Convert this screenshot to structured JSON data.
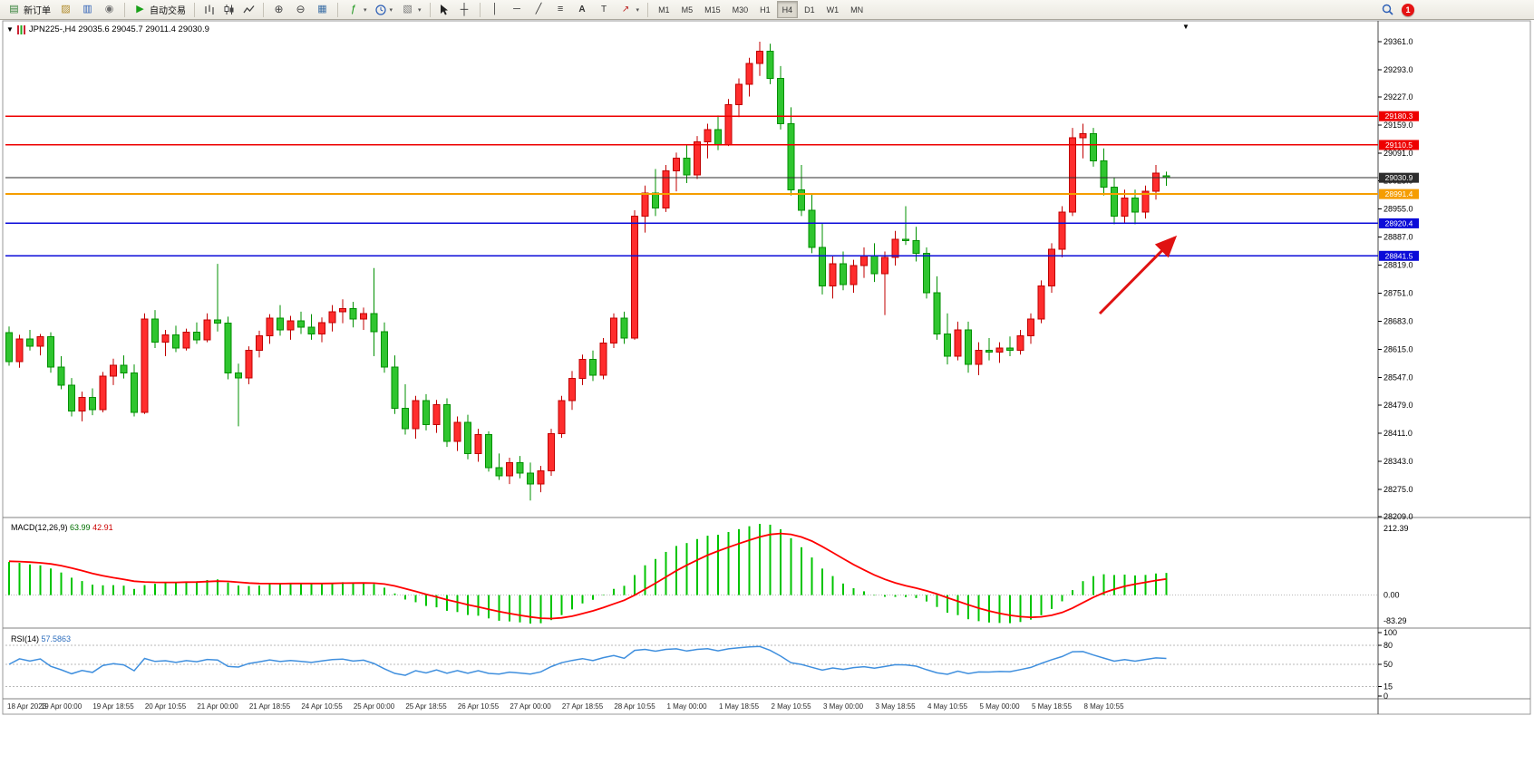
{
  "toolbar": {
    "new_order_label": "新订单",
    "auto_trading_label": "自动交易",
    "timeframes": [
      "M1",
      "M5",
      "M15",
      "M30",
      "H1",
      "H4",
      "D1",
      "W1",
      "MN"
    ],
    "active_timeframe": "H4",
    "notification_count": "1"
  },
  "chart": {
    "title": "JPN225-,H4 29035.6 29045.7 29011.4 29030.9"
  },
  "chart_data": {
    "type": "candlestick",
    "symbol": "JPN225-",
    "timeframe": "H4",
    "current_ohlc": {
      "open": 29035.6,
      "high": 29045.7,
      "low": 29011.4,
      "close": 29030.9
    },
    "price_axis_ticks": [
      29361.0,
      29293.0,
      29227.0,
      29159.0,
      29091.0,
      29023.0,
      28955.0,
      28887.0,
      28819.0,
      28751.0,
      28683.0,
      28615.0,
      28547.0,
      28479.0,
      28411.0,
      28343.0,
      28275.0,
      28209.0
    ],
    "price_range": {
      "top": 29361.0,
      "bottom": 28209.0
    },
    "horizontal_lines": [
      {
        "price": 29180.3,
        "label": "29180.3",
        "color": "#ee0000",
        "type": "resistance"
      },
      {
        "price": 29110.5,
        "label": "29110.5",
        "color": "#ee0000",
        "type": "resistance"
      },
      {
        "price": 29030.9,
        "label": "29030.9",
        "color": "#2d2d2d",
        "type": "current-price"
      },
      {
        "price": 28991.4,
        "label": "28991.4",
        "color": "#f59d00",
        "type": "level"
      },
      {
        "price": 28920.4,
        "label": "28920.4",
        "color": "#0b0bd8",
        "type": "support"
      },
      {
        "price": 28841.5,
        "label": "28841.5",
        "color": "#0b0bd8",
        "type": "support"
      }
    ],
    "candles_ohlc": [
      [
        28655,
        28670,
        28575,
        28585
      ],
      [
        28585,
        28650,
        28570,
        28640
      ],
      [
        28640,
        28662,
        28612,
        28622
      ],
      [
        28622,
        28652,
        28600,
        28645
      ],
      [
        28645,
        28656,
        28558,
        28572
      ],
      [
        28572,
        28598,
        28518,
        28528
      ],
      [
        28528,
        28545,
        28452,
        28465
      ],
      [
        28465,
        28512,
        28440,
        28498
      ],
      [
        28498,
        28520,
        28455,
        28468
      ],
      [
        28468,
        28560,
        28462,
        28550
      ],
      [
        28550,
        28592,
        28528,
        28576
      ],
      [
        28576,
        28600,
        28544,
        28558
      ],
      [
        28558,
        28578,
        28452,
        28462
      ],
      [
        28462,
        28702,
        28458,
        28688
      ],
      [
        28688,
        28710,
        28618,
        28632
      ],
      [
        28632,
        28662,
        28598,
        28650
      ],
      [
        28650,
        28672,
        28608,
        28618
      ],
      [
        28618,
        28665,
        28612,
        28656
      ],
      [
        28656,
        28680,
        28628,
        28638
      ],
      [
        28638,
        28702,
        28632,
        28686
      ],
      [
        28686,
        28822,
        28658,
        28678
      ],
      [
        28678,
        28694,
        28542,
        28558
      ],
      [
        28558,
        28580,
        28428,
        28545
      ],
      [
        28545,
        28622,
        28530,
        28612
      ],
      [
        28612,
        28660,
        28595,
        28648
      ],
      [
        28648,
        28700,
        28628,
        28690
      ],
      [
        28690,
        28722,
        28648,
        28662
      ],
      [
        28662,
        28696,
        28638,
        28684
      ],
      [
        28684,
        28706,
        28652,
        28668
      ],
      [
        28668,
        28700,
        28638,
        28652
      ],
      [
        28652,
        28692,
        28632,
        28680
      ],
      [
        28680,
        28722,
        28658,
        28706
      ],
      [
        28706,
        28736,
        28678,
        28714
      ],
      [
        28714,
        28730,
        28668,
        28688
      ],
      [
        28688,
        28716,
        28662,
        28702
      ],
      [
        28702,
        28812,
        28598,
        28658
      ],
      [
        28658,
        28680,
        28558,
        28572
      ],
      [
        28572,
        28600,
        28458,
        28472
      ],
      [
        28472,
        28530,
        28408,
        28422
      ],
      [
        28422,
        28502,
        28398,
        28490
      ],
      [
        28490,
        28506,
        28418,
        28432
      ],
      [
        28432,
        28492,
        28412,
        28480
      ],
      [
        28480,
        28496,
        28378,
        28392
      ],
      [
        28392,
        28452,
        28368,
        28438
      ],
      [
        28438,
        28456,
        28348,
        28362
      ],
      [
        28362,
        28422,
        28342,
        28408
      ],
      [
        28408,
        28416,
        28318,
        28328
      ],
      [
        28328,
        28362,
        28298,
        28308
      ],
      [
        28308,
        28352,
        28288,
        28340
      ],
      [
        28340,
        28356,
        28302,
        28314
      ],
      [
        28314,
        28340,
        28248,
        28288
      ],
      [
        28288,
        28332,
        28268,
        28320
      ],
      [
        28320,
        28422,
        28308,
        28410
      ],
      [
        28410,
        28502,
        28400,
        28490
      ],
      [
        28490,
        28562,
        28468,
        28544
      ],
      [
        28544,
        28602,
        28528,
        28590
      ],
      [
        28590,
        28612,
        28538,
        28552
      ],
      [
        28552,
        28642,
        28542,
        28630
      ],
      [
        28630,
        28702,
        28618,
        28690
      ],
      [
        28690,
        28706,
        28628,
        28642
      ],
      [
        28642,
        28952,
        28638,
        28938
      ],
      [
        28938,
        29012,
        28898,
        28994
      ],
      [
        28994,
        29052,
        28938,
        28958
      ],
      [
        28958,
        29062,
        28948,
        29048
      ],
      [
        29048,
        29092,
        28998,
        29078
      ],
      [
        29078,
        29112,
        29018,
        29038
      ],
      [
        29038,
        29132,
        29028,
        29118
      ],
      [
        29118,
        29162,
        29078,
        29148
      ],
      [
        29148,
        29182,
        29098,
        29112
      ],
      [
        29112,
        29222,
        29108,
        29208
      ],
      [
        29208,
        29272,
        29178,
        29258
      ],
      [
        29258,
        29322,
        29228,
        29308
      ],
      [
        29308,
        29361,
        29278,
        29338
      ],
      [
        29338,
        29356,
        29258,
        29272
      ],
      [
        29272,
        29302,
        29148,
        29162
      ],
      [
        29162,
        29202,
        28988,
        29002
      ],
      [
        29002,
        29062,
        28938,
        28952
      ],
      [
        28952,
        28992,
        28848,
        28862
      ],
      [
        28862,
        28922,
        28748,
        28768
      ],
      [
        28768,
        28842,
        28738,
        28822
      ],
      [
        28822,
        28852,
        28758,
        28772
      ],
      [
        28772,
        28832,
        28752,
        28818
      ],
      [
        28818,
        28862,
        28788,
        28842
      ],
      [
        28842,
        28872,
        28778,
        28798
      ],
      [
        28798,
        28852,
        28698,
        28838
      ],
      [
        28838,
        28902,
        28818,
        28882
      ],
      [
        28882,
        28962,
        28868,
        28878
      ],
      [
        28878,
        28912,
        28828,
        28848
      ],
      [
        28848,
        28862,
        28738,
        28752
      ],
      [
        28752,
        28792,
        28638,
        28652
      ],
      [
        28652,
        28702,
        28578,
        28598
      ],
      [
        28598,
        28682,
        28588,
        28662
      ],
      [
        28662,
        28682,
        28558,
        28578
      ],
      [
        28578,
        28632,
        28552,
        28612
      ],
      [
        28612,
        28642,
        28588,
        28608
      ],
      [
        28608,
        28632,
        28582,
        28618
      ],
      [
        28618,
        28646,
        28598,
        28612
      ],
      [
        28612,
        28662,
        28602,
        28648
      ],
      [
        28648,
        28702,
        28628,
        28688
      ],
      [
        28688,
        28782,
        28678,
        28768
      ],
      [
        28768,
        28872,
        28752,
        28858
      ],
      [
        28858,
        28962,
        28838,
        28948
      ],
      [
        28948,
        29152,
        28938,
        29128
      ],
      [
        29128,
        29162,
        29078,
        29138
      ],
      [
        29138,
        29152,
        29058,
        29072
      ],
      [
        29072,
        29102,
        28988,
        29008
      ],
      [
        29008,
        29032,
        28918,
        28938
      ],
      [
        28938,
        29002,
        28922,
        28982
      ],
      [
        28982,
        29002,
        28918,
        28948
      ],
      [
        28948,
        29012,
        28932,
        28998
      ],
      [
        28998,
        29062,
        28978,
        29042
      ],
      [
        29035.6,
        29045.7,
        29011.4,
        29030.9
      ]
    ],
    "date_labels": [
      "18 Apr 2023",
      "19 Apr 00:00",
      "19 Apr 18:55",
      "20 Apr 10:55",
      "21 Apr 00:00",
      "21 Apr 18:55",
      "24 Apr 10:55",
      "25 Apr 00:00",
      "25 Apr 18:55",
      "26 Apr 10:55",
      "27 Apr 00:00",
      "27 Apr 18:55",
      "28 Apr 10:55",
      "1 May 00:00",
      "1 May 18:55",
      "2 May 10:55",
      "3 May 00:00",
      "3 May 18:55",
      "4 May 10:55",
      "5 May 00:00",
      "5 May 18:55",
      "8 May 10:55"
    ],
    "macd": {
      "label": "MACD(12,26,9)",
      "main_value": "63.99",
      "signal_value": "42.91",
      "axis_labels": [
        "212.39",
        "0.00",
        "-83.29"
      ],
      "fast": 12,
      "slow": 26,
      "signal": 9
    },
    "rsi": {
      "label": "RSI(14)",
      "value": "57.5863",
      "axis_labels": [
        "100",
        "80",
        "50",
        "15",
        "0"
      ],
      "levels": [
        80,
        50,
        15
      ],
      "period": 14
    },
    "annotation_arrow": {
      "direction": "up-right",
      "color": "#e01212"
    },
    "colors": {
      "bull": "#ff2d2d",
      "bull_stroke": "#c00000",
      "bear": "#2fc52f",
      "bear_stroke": "#009000",
      "macd_histogram": "#00c400",
      "macd_signal": "#ff0000",
      "rsi_line": "#3f8fde",
      "grid_dotted": "#b8b8b8",
      "axis_text": "#000000",
      "background": "#ffffff"
    }
  }
}
